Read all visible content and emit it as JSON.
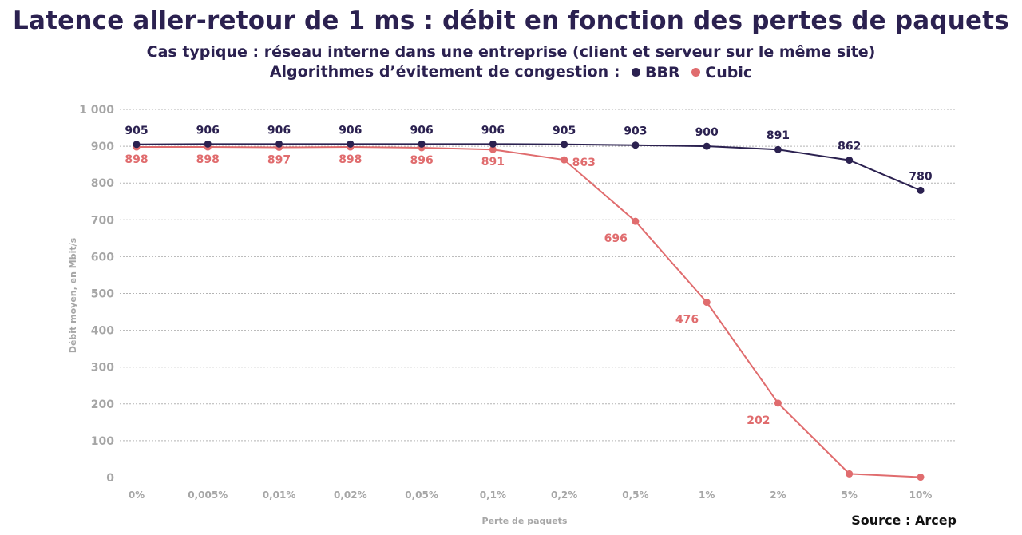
{
  "chart_data": {
    "type": "line",
    "title": "Latence aller-retour de 1 ms : débit en fonction des pertes de paquets",
    "subtitle": "Cas typique : réseau interne dans une entreprise (client et serveur sur le même site)",
    "legend_prefix": "Algorithmes d’évitement de congestion :",
    "xlabel": "Perte de paquets",
    "ylabel": "Débit moyen, en Mbit/s",
    "ylim": [
      0,
      1000
    ],
    "yticks": [
      0,
      100,
      200,
      300,
      400,
      500,
      600,
      700,
      800,
      900,
      1000
    ],
    "ytick_labels": [
      "0",
      "100",
      "200",
      "300",
      "400",
      "500",
      "600",
      "700",
      "800",
      "900",
      "1 000"
    ],
    "categories": [
      "0%",
      "0,005%",
      "0,01%",
      "0,02%",
      "0,05%",
      "0,1%",
      "0,2%",
      "0,5%",
      "1%",
      "2%",
      "5%",
      "10%"
    ],
    "series": [
      {
        "name": "BBR",
        "color": "#2b2150",
        "values": [
          905,
          906,
          906,
          906,
          906,
          906,
          905,
          903,
          900,
          891,
          862,
          780
        ],
        "labels": [
          "905",
          "906",
          "906",
          "906",
          "906",
          "906",
          "905",
          "903",
          "900",
          "891",
          "862",
          "780"
        ]
      },
      {
        "name": "Cubic",
        "color": "#e06c6e",
        "values": [
          898,
          898,
          897,
          898,
          896,
          891,
          863,
          696,
          476,
          202,
          10,
          1
        ],
        "labels": [
          "898",
          "898",
          "897",
          "898",
          "896",
          "891",
          "863",
          "696",
          "476",
          "202",
          "",
          ""
        ]
      }
    ],
    "grid": true,
    "legend_position": "top-center",
    "source": "Source : Arcep"
  }
}
